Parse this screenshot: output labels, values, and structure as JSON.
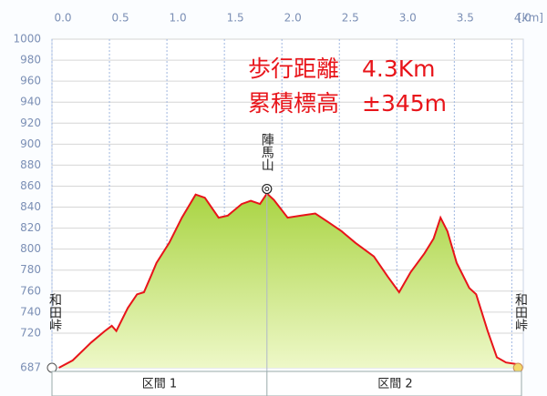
{
  "chart_data": {
    "type": "area",
    "info_lines": [
      "歩行距離　4.3Km",
      "累積標高　±345m"
    ],
    "x_unit": "[km]",
    "x": [
      0.06,
      0.18,
      0.34,
      0.46,
      0.52,
      0.56,
      0.66,
      0.74,
      0.8,
      0.86,
      0.91,
      1.02,
      1.13,
      1.25,
      1.33,
      1.45,
      1.53,
      1.65,
      1.73,
      1.81,
      1.87,
      1.93,
      2.05,
      2.17,
      2.29,
      2.4,
      2.52,
      2.64,
      2.8,
      2.92,
      3.02,
      3.12,
      3.24,
      3.32,
      3.38,
      3.44,
      3.52,
      3.63,
      3.69,
      3.79,
      3.87,
      3.95,
      4.07
    ],
    "series": [
      {
        "color": "#e8141a",
        "fill": "#b9dc5a",
        "values": [
          687,
          694,
          711,
          722,
          727,
          722,
          744,
          757,
          759,
          774,
          787,
          806,
          830,
          852,
          849,
          830,
          832,
          843,
          846,
          843,
          853,
          847,
          830,
          832,
          834,
          826,
          817,
          806,
          793,
          774,
          759,
          778,
          796,
          810,
          830,
          817,
          787,
          763,
          757,
          722,
          697,
          692,
          690
        ]
      }
    ],
    "xlim": [
      0,
      4.1
    ],
    "xticks": [
      {
        "value": 0,
        "label": "0.0"
      },
      0.5,
      {
        "value": 1,
        "label": "1.0"
      },
      1.5,
      {
        "value": 2,
        "label": "2.0"
      },
      2.5,
      {
        "value": 3,
        "label": "3.0"
      },
      3.5,
      {
        "value": 4,
        "label": "4.0"
      }
    ],
    "ylim": [
      687,
      1000
    ],
    "yticks": [
      687,
      720,
      740,
      760,
      780,
      800,
      820,
      840,
      860,
      880,
      900,
      920,
      940,
      960,
      980,
      1000
    ],
    "grid": true,
    "peak": {
      "label": "陣馬山",
      "x": 1.87
    },
    "start_label": "和田峠",
    "end_label": "和田峠",
    "segments": [
      "区間 1",
      "区間 2"
    ]
  }
}
